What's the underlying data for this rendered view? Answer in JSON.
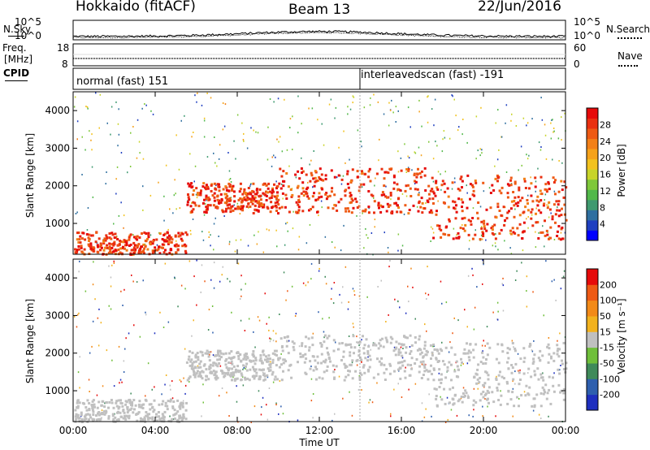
{
  "header": {
    "station": "Hokkaido (fitACF)",
    "beam": "Beam 13",
    "date": "22/Jun/2016"
  },
  "top_panels": {
    "nsky_label": "N.Sky",
    "nsearch_label": "N.Search",
    "freq_label_line1": "Freq.",
    "freq_label_line2": "[MHz]",
    "nave_label": "Nave",
    "cpid_label": "CPID",
    "noise_left_ticks": [
      "10^5",
      "10^0"
    ],
    "noise_right_ticks": [
      "10^5",
      "10^0"
    ],
    "freq_left_ticks": [
      "18",
      "8"
    ],
    "nave_right_ticks": [
      "60",
      "0"
    ],
    "cpid_segments": [
      {
        "label": "normal (fast) 151",
        "start_hour": 0,
        "end_hour": 14
      },
      {
        "label": "interleavedscan (fast) -191",
        "start_hour": 14,
        "end_hour": 24
      }
    ]
  },
  "chart_data": [
    {
      "type": "heatmap",
      "name": "power",
      "ylabel": "Slant Range [km]",
      "xlabel": "Time UT",
      "x_ticks": [
        "00:00",
        "04:00",
        "08:00",
        "12:00",
        "16:00",
        "20:00",
        "00:00"
      ],
      "x_range_hours": [
        0,
        24
      ],
      "y_ticks": [
        1000,
        2000,
        3000,
        4000
      ],
      "y_range_km": [
        180,
        4500
      ],
      "colorbar": {
        "label": "Power [dB]",
        "ticks": [
          4,
          8,
          12,
          16,
          20,
          24,
          28
        ],
        "range": [
          0,
          32
        ],
        "colors": [
          "#0000ff",
          "#1f3fc0",
          "#2f6fa0",
          "#3f9a70",
          "#52b84a",
          "#7fc83a",
          "#c8d42a",
          "#f2c21e",
          "#f5a21a",
          "#f28018",
          "#ee5a14",
          "#ea3010",
          "#e60a0a"
        ]
      },
      "bands": [
        {
          "hours": [
            0,
            5.5
          ],
          "range_km": [
            200,
            800
          ],
          "value": 30
        },
        {
          "hours": [
            5.5,
            10
          ],
          "range_km": [
            1300,
            2100
          ],
          "value": 24
        },
        {
          "hours": [
            10,
            17.5
          ],
          "range_km": [
            1300,
            2500
          ],
          "value": 26
        },
        {
          "hours": [
            17.5,
            24
          ],
          "range_km": [
            600,
            2300
          ],
          "value": 24
        }
      ]
    },
    {
      "type": "heatmap",
      "name": "velocity",
      "ylabel": "Slant Range [km]",
      "xlabel": "Time UT",
      "x_ticks": [
        "00:00",
        "04:00",
        "08:00",
        "12:00",
        "16:00",
        "20:00",
        "00:00"
      ],
      "x_range_hours": [
        0,
        24
      ],
      "y_ticks": [
        1000,
        2000,
        3000,
        4000
      ],
      "y_range_km": [
        180,
        4500
      ],
      "colorbar": {
        "label": "Velocity [m s⁻¹]",
        "ticks": [
          200,
          100,
          50,
          15,
          -15,
          -50,
          -100,
          -200
        ],
        "colors": [
          "#1e2fbf",
          "#2e5fae",
          "#3f8a5a",
          "#6fbf3a",
          "#c0c0c0",
          "#f2b21e",
          "#f28a18",
          "#ee5a14",
          "#e60a0a"
        ]
      },
      "bands": [
        {
          "hours": [
            0,
            5.5
          ],
          "range_km": [
            200,
            800
          ],
          "value": 0
        },
        {
          "hours": [
            5.5,
            10
          ],
          "range_km": [
            1300,
            2100
          ],
          "value": 0
        },
        {
          "hours": [
            10,
            17.5
          ],
          "range_km": [
            1300,
            2500
          ],
          "value": 0
        },
        {
          "hours": [
            17.5,
            24
          ],
          "range_km": [
            600,
            2300
          ],
          "value": 0
        }
      ]
    }
  ]
}
